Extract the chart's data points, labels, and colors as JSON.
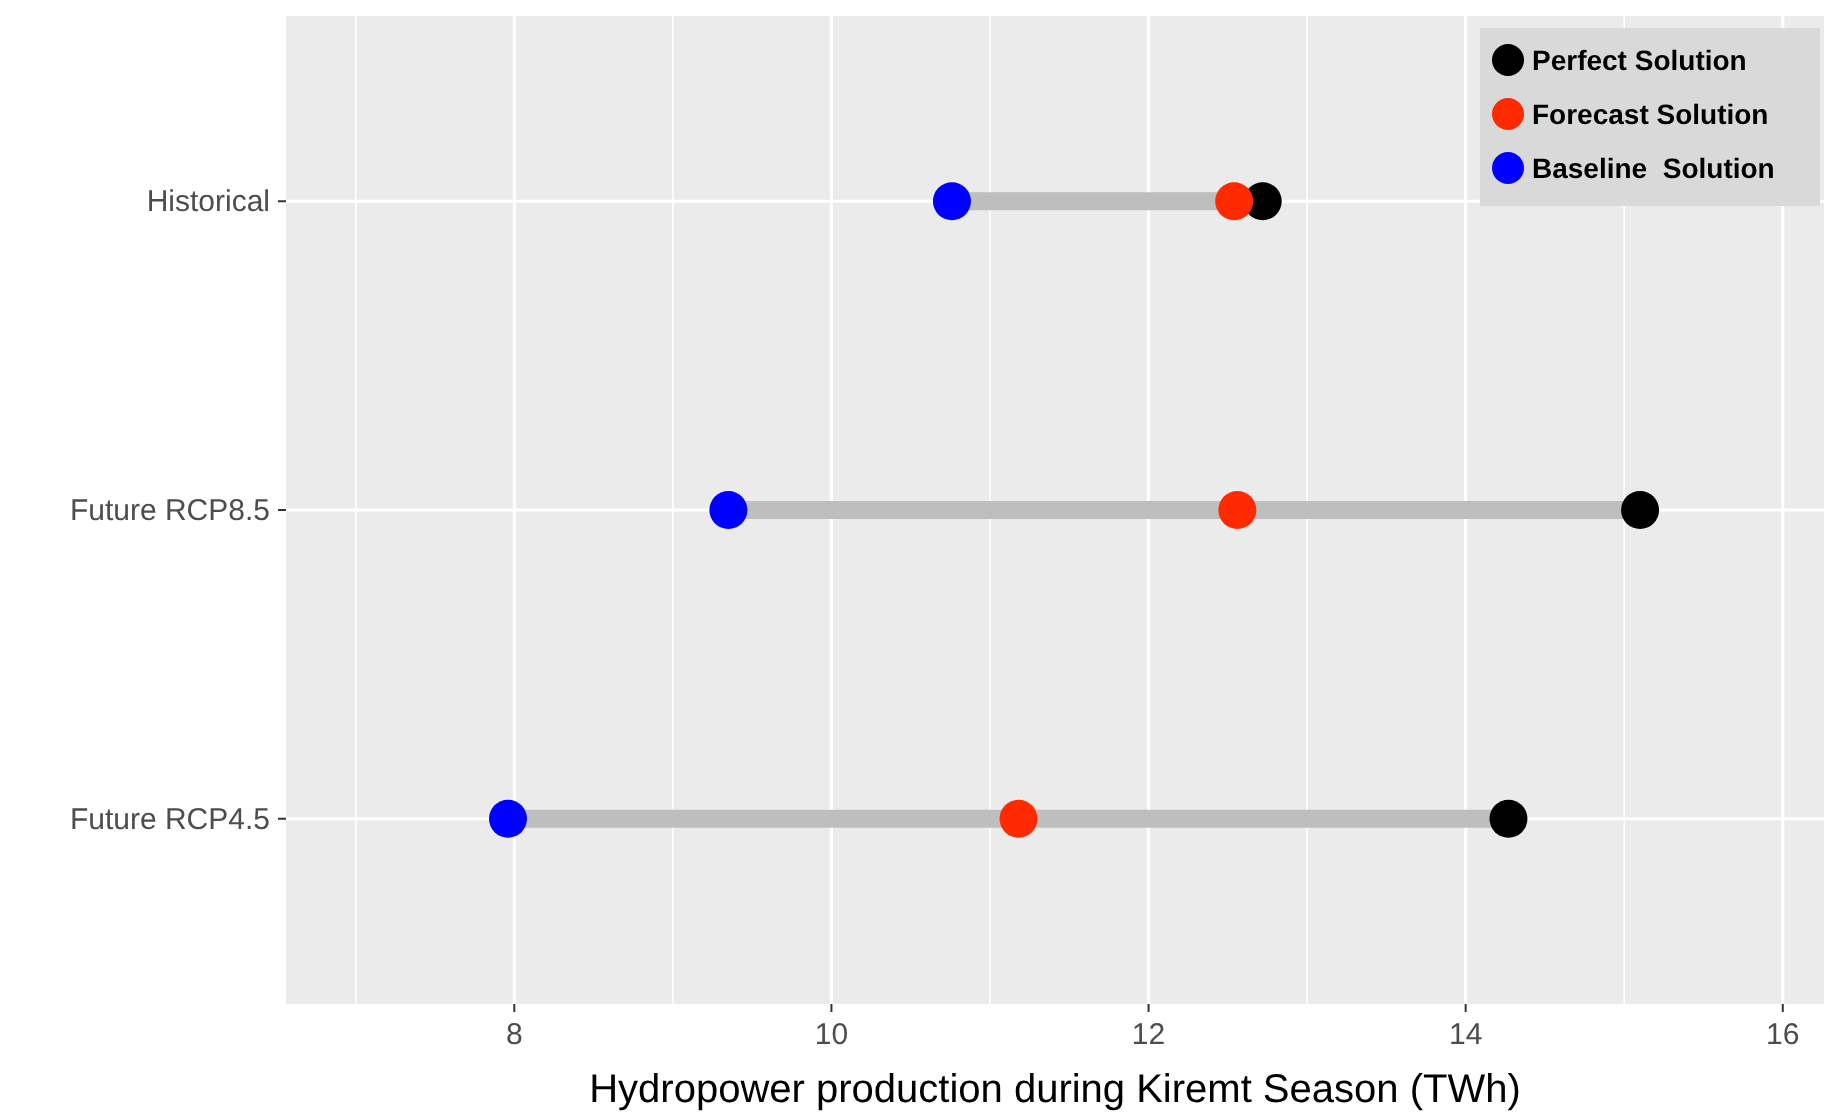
{
  "chart_data": {
    "type": "scatter",
    "orientation": "horizontal",
    "xlabel": "Hydropower production during Kiremt Season (TWh)",
    "categories": [
      "Historical",
      "Future RCP8.5",
      "Future RCP4.5"
    ],
    "xlim": [
      6.56,
      16.26
    ],
    "xticks": [
      {
        "value": 7,
        "label": null
      },
      8,
      {
        "value": 9,
        "label": null
      },
      10,
      {
        "value": 11,
        "label": null
      },
      12,
      {
        "value": 13,
        "label": null
      },
      14,
      {
        "value": 15,
        "label": null
      },
      16
    ],
    "grid": true,
    "legend": "top right",
    "marker": "circle",
    "series": [
      {
        "name": "Perfect Solution",
        "color": "#000000",
        "values": [
          12.72,
          15.1,
          14.27
        ]
      },
      {
        "name": "Forecast Solution",
        "color": "#ff2a00",
        "values": [
          12.54,
          12.56,
          11.18
        ]
      },
      {
        "name": "Baseline  Solution",
        "color": "#0000ff",
        "values": [
          10.76,
          9.35,
          7.96
        ]
      }
    ]
  }
}
